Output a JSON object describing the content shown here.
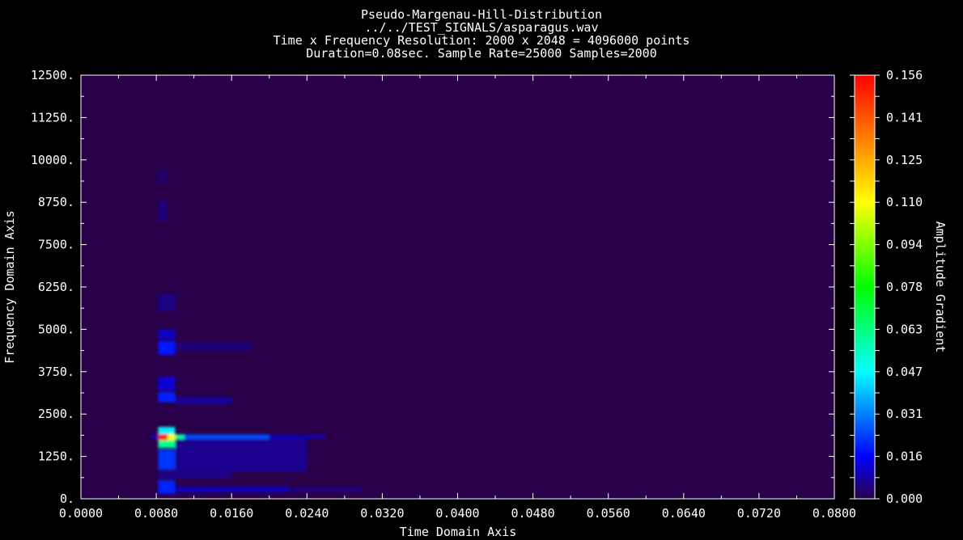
{
  "chart_data": {
    "type": "heatmap",
    "title": "Pseudo-Margenau-Hill-Distribution",
    "subtitle_lines": [
      "../../TEST_SIGNALS/asparagus.wav",
      "Time x Frequency Resolution: 2000 x 2048 = 4096000 points",
      "Duration=0.08sec. Sample Rate=25000 Samples=2000"
    ],
    "xlabel": "Time Domain Axis",
    "ylabel": "Frequency Domain Axis",
    "colorbar_label": "Amplitude Gradient",
    "xlim": [
      0,
      0.08
    ],
    "ylim": [
      0,
      12500
    ],
    "x_ticks": [
      "0.0000",
      "0.0080",
      "0.0160",
      "0.0240",
      "0.0320",
      "0.0400",
      "0.0480",
      "0.0560",
      "0.0640",
      "0.0720",
      "0.0800"
    ],
    "y_ticks": [
      "0.",
      "1250.",
      "2500.",
      "3750.",
      "5000.",
      "6250.",
      "7500.",
      "8750.",
      "10000.",
      "11250.",
      "12500."
    ],
    "colorbar_ticks": [
      "0.000",
      "0.016",
      "0.031",
      "0.047",
      "0.063",
      "0.078",
      "0.094",
      "0.110",
      "0.125",
      "0.141",
      "0.156"
    ],
    "value_range": [
      0,
      0.156
    ],
    "background_color": "#2a004a",
    "features": [
      {
        "t0": 0.0082,
        "t1": 0.0092,
        "f": 1820,
        "df": 90,
        "v": 0.15
      },
      {
        "t0": 0.0092,
        "t1": 0.01,
        "f": 1820,
        "df": 90,
        "v": 0.11
      },
      {
        "t0": 0.01,
        "t1": 0.011,
        "f": 1830,
        "df": 70,
        "v": 0.06
      },
      {
        "t0": 0.0082,
        "t1": 0.01,
        "f": 1650,
        "df": 150,
        "v": 0.06
      },
      {
        "t0": 0.0082,
        "t1": 0.01,
        "f": 2000,
        "df": 120,
        "v": 0.045
      },
      {
        "t0": 0.011,
        "t1": 0.02,
        "f": 1830,
        "df": 70,
        "v": 0.025
      },
      {
        "t0": 0.02,
        "t1": 0.026,
        "f": 1830,
        "df": 50,
        "v": 0.01
      },
      {
        "t0": 0.0075,
        "t1": 0.0082,
        "f": 1830,
        "df": 50,
        "v": 0.012
      },
      {
        "t0": 0.0082,
        "t1": 0.01,
        "f": 1150,
        "df": 300,
        "v": 0.022
      },
      {
        "t0": 0.0082,
        "t1": 0.01,
        "f": 3000,
        "df": 150,
        "v": 0.02
      },
      {
        "t0": 0.0082,
        "t1": 0.01,
        "f": 3400,
        "df": 200,
        "v": 0.012
      },
      {
        "t0": 0.0082,
        "t1": 0.01,
        "f": 4450,
        "df": 200,
        "v": 0.018
      },
      {
        "t0": 0.0082,
        "t1": 0.01,
        "f": 4850,
        "df": 150,
        "v": 0.01
      },
      {
        "t0": 0.0082,
        "t1": 0.01,
        "f": 5800,
        "df": 250,
        "v": 0.005
      },
      {
        "t0": 0.0082,
        "t1": 0.0092,
        "f": 8500,
        "df": 300,
        "v": 0.004
      },
      {
        "t0": 0.0082,
        "t1": 0.0092,
        "f": 9500,
        "df": 200,
        "v": 0.003
      },
      {
        "t0": 0.01,
        "t1": 0.024,
        "f": 1300,
        "df": 500,
        "v": 0.006
      },
      {
        "t0": 0.01,
        "t1": 0.016,
        "f": 2900,
        "df": 120,
        "v": 0.006
      },
      {
        "t0": 0.01,
        "t1": 0.018,
        "f": 4500,
        "df": 120,
        "v": 0.004
      },
      {
        "t0": 0.0082,
        "t1": 0.01,
        "f": 350,
        "df": 200,
        "v": 0.02
      },
      {
        "t0": 0.01,
        "t1": 0.022,
        "f": 280,
        "df": 80,
        "v": 0.01
      },
      {
        "t0": 0.022,
        "t1": 0.03,
        "f": 280,
        "df": 60,
        "v": 0.005
      },
      {
        "t0": 0.0082,
        "t1": 0.016,
        "f": 700,
        "df": 80,
        "v": 0.006
      }
    ]
  }
}
